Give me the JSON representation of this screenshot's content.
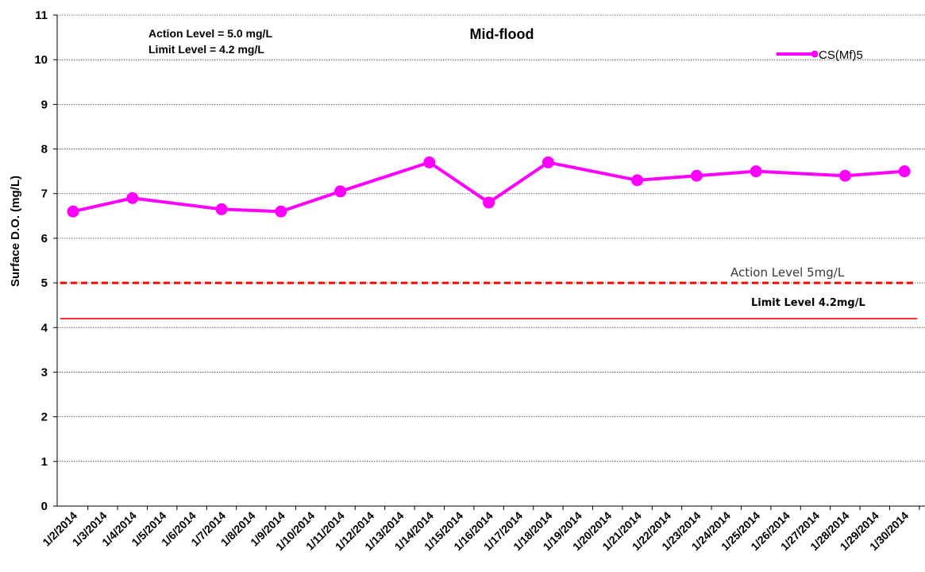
{
  "chart_data": {
    "type": "line",
    "title": "Mid-flood",
    "ylabel": "Surface D.O. (mg/L)",
    "xlabel": "",
    "ylim": [
      0,
      11
    ],
    "yticks": [
      0,
      1,
      2,
      3,
      4,
      5,
      6,
      7,
      8,
      9,
      10,
      11
    ],
    "grid": true,
    "legend_position": "top-right",
    "categories": [
      "1/2/2014",
      "1/3/2014",
      "1/4/2014",
      "1/5/2014",
      "1/6/2014",
      "1/7/2014",
      "1/8/2014",
      "1/9/2014",
      "1/10/2014",
      "1/11/2014",
      "1/12/2014",
      "1/13/2014",
      "1/14/2014",
      "1/15/2014",
      "1/16/2014",
      "1/17/2014",
      "1/18/2014",
      "1/19/2014",
      "1/20/2014",
      "1/21/2014",
      "1/22/2014",
      "1/23/2014",
      "1/24/2014",
      "1/25/2014",
      "1/26/2014",
      "1/27/2014",
      "1/28/2014",
      "1/29/2014",
      "1/30/2014"
    ],
    "series": [
      {
        "name": "CS(Mf)5",
        "color": "#ff00ff",
        "points": [
          {
            "x": "1/2/2014",
            "y": 6.6
          },
          {
            "x": "1/4/2014",
            "y": 6.9
          },
          {
            "x": "1/7/2014",
            "y": 6.65
          },
          {
            "x": "1/9/2014",
            "y": 6.6
          },
          {
            "x": "1/11/2014",
            "y": 7.05
          },
          {
            "x": "1/14/2014",
            "y": 7.7
          },
          {
            "x": "1/16/2014",
            "y": 6.8
          },
          {
            "x": "1/18/2014",
            "y": 7.7
          },
          {
            "x": "1/21/2014",
            "y": 7.3
          },
          {
            "x": "1/23/2014",
            "y": 7.4
          },
          {
            "x": "1/25/2014",
            "y": 7.5
          },
          {
            "x": "1/28/2014",
            "y": 7.4
          },
          {
            "x": "1/30/2014",
            "y": 7.5
          }
        ]
      }
    ],
    "reference_lines": [
      {
        "label": "Action Level 5mg/L",
        "value": 5.0,
        "style": "dashed",
        "color": "#ff0000"
      },
      {
        "label": "Limit Level 4.2mg/L",
        "value": 4.2,
        "style": "solid",
        "color": "#ff0000"
      }
    ],
    "annotations": {
      "action_note": "Action Level  = 5.0 mg/L",
      "limit_note": "Limit Level  = 4.2 mg/L"
    }
  }
}
